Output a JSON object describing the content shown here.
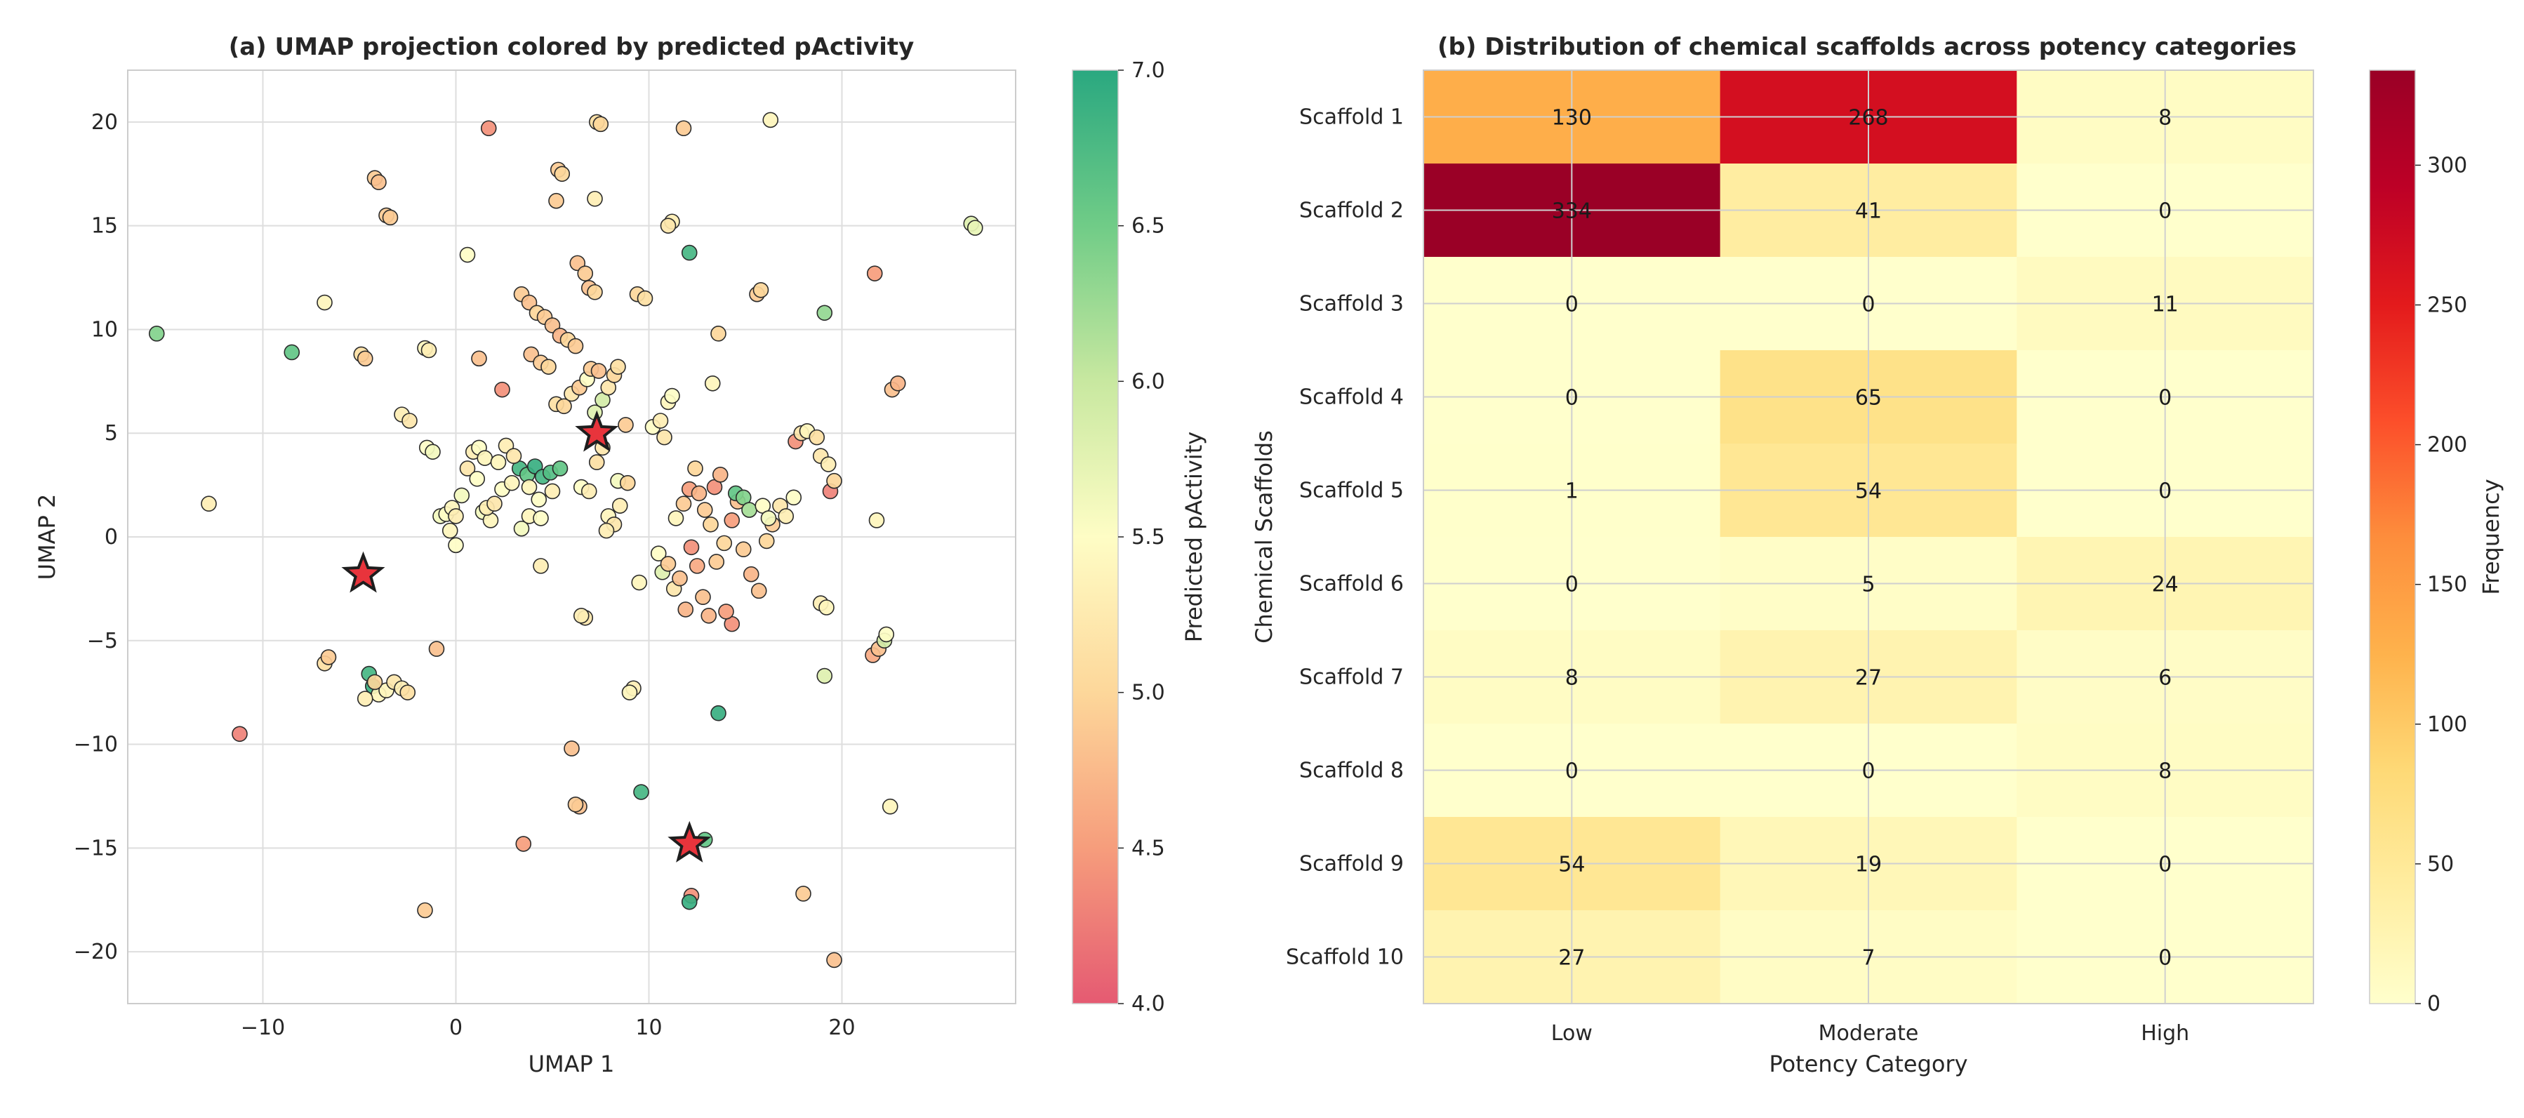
{
  "chart_data": [
    {
      "type": "scatter",
      "title": "(a) UMAP projection colored by predicted pActivity",
      "xlabel": "UMAP 1",
      "ylabel": "UMAP 2",
      "xlim": [
        -17,
        29
      ],
      "ylim": [
        -22.5,
        22.5
      ],
      "xticks": [
        -10,
        0,
        10,
        20
      ],
      "yticks": [
        -20,
        -15,
        -10,
        -5,
        0,
        5,
        10,
        15,
        20
      ],
      "grid": true,
      "colorbar": {
        "label": "Predicted pActivity",
        "range": [
          4.0,
          7.0
        ],
        "ticks": [
          4.0,
          4.5,
          5.0,
          5.5,
          6.0,
          6.5,
          7.0
        ],
        "tick_labels": [
          "4.0",
          "4.5",
          "5.0",
          "5.5",
          "6.0",
          "6.5",
          "7.0"
        ],
        "colors": [
          "#e55a72",
          "#f69d7c",
          "#fdd79a",
          "#fefdc5",
          "#c8e8a0",
          "#70cc87",
          "#2aa880"
        ]
      },
      "points": [
        [
          -15.5,
          9.8,
          6.4
        ],
        [
          -12.8,
          1.6,
          5.3
        ],
        [
          -11.2,
          -9.5,
          4.3
        ],
        [
          -8.5,
          8.9,
          6.6
        ],
        [
          -6.8,
          11.3,
          5.4
        ],
        [
          -6.8,
          -6.1,
          5.1
        ],
        [
          -6.6,
          -5.8,
          4.9
        ],
        [
          -4.9,
          8.8,
          5.1
        ],
        [
          -4.7,
          8.6,
          4.9
        ],
        [
          -4.2,
          17.3,
          4.9
        ],
        [
          -4.0,
          17.1,
          4.8
        ],
        [
          -3.6,
          15.5,
          4.9
        ],
        [
          -3.4,
          15.4,
          4.9
        ],
        [
          -2.8,
          5.9,
          5.3
        ],
        [
          -2.4,
          5.6,
          5.2
        ],
        [
          -1.6,
          9.1,
          5.4
        ],
        [
          -1.4,
          9.0,
          5.3
        ],
        [
          -1.5,
          4.3,
          5.5
        ],
        [
          -1.2,
          4.1,
          5.6
        ],
        [
          -1.0,
          -5.4,
          4.8
        ],
        [
          -1.6,
          -18.0,
          4.9
        ],
        [
          -4.5,
          -6.6,
          6.8
        ],
        [
          -4.3,
          -7.2,
          6.9
        ],
        [
          -4.0,
          -7.6,
          5.4
        ],
        [
          -3.6,
          -7.4,
          5.4
        ],
        [
          -3.2,
          -7.0,
          5.2
        ],
        [
          -2.8,
          -7.3,
          5.3
        ],
        [
          -2.5,
          -7.5,
          5.1
        ],
        [
          -4.7,
          -7.8,
          5.3
        ],
        [
          -4.2,
          -7.0,
          5.0
        ],
        [
          -0.8,
          1.0,
          5.6
        ],
        [
          -0.5,
          1.1,
          5.5
        ],
        [
          -0.2,
          1.4,
          5.4
        ],
        [
          0.0,
          1.0,
          5.3
        ],
        [
          -0.3,
          0.3,
          5.4
        ],
        [
          0.0,
          -0.4,
          5.5
        ],
        [
          0.3,
          2.0,
          5.6
        ],
        [
          0.6,
          3.3,
          5.2
        ],
        [
          0.9,
          4.1,
          5.3
        ],
        [
          1.2,
          4.3,
          5.5
        ],
        [
          1.5,
          3.8,
          5.4
        ],
        [
          1.1,
          2.8,
          5.5
        ],
        [
          1.4,
          1.2,
          5.6
        ],
        [
          1.8,
          0.8,
          5.4
        ],
        [
          1.6,
          1.4,
          5.3
        ],
        [
          0.6,
          13.6,
          5.5
        ],
        [
          1.2,
          8.6,
          4.8
        ],
        [
          1.7,
          19.7,
          4.4
        ],
        [
          2.4,
          7.1,
          4.4
        ],
        [
          2.0,
          1.6,
          5.2
        ],
        [
          2.4,
          2.3,
          5.5
        ],
        [
          2.9,
          2.6,
          5.4
        ],
        [
          3.3,
          3.3,
          6.8
        ],
        [
          3.7,
          3.0,
          6.6
        ],
        [
          4.1,
          3.4,
          6.9
        ],
        [
          4.5,
          2.9,
          6.8
        ],
        [
          4.9,
          3.1,
          6.7
        ],
        [
          5.4,
          3.3,
          6.6
        ],
        [
          3.8,
          2.4,
          5.4
        ],
        [
          4.3,
          1.8,
          5.5
        ],
        [
          5.0,
          2.2,
          5.3
        ],
        [
          2.6,
          4.4,
          5.3
        ],
        [
          3.0,
          3.9,
          5.2
        ],
        [
          2.2,
          3.6,
          5.4
        ],
        [
          3.4,
          0.4,
          5.6
        ],
        [
          3.8,
          1.0,
          5.4
        ],
        [
          4.4,
          0.9,
          5.5
        ],
        [
          4.4,
          -1.4,
          5.3
        ],
        [
          3.5,
          -14.8,
          4.5
        ],
        [
          3.4,
          11.7,
          4.9
        ],
        [
          3.8,
          11.3,
          4.8
        ],
        [
          4.2,
          10.8,
          5.0
        ],
        [
          4.6,
          10.6,
          4.9
        ],
        [
          5.0,
          10.2,
          4.8
        ],
        [
          5.4,
          9.7,
          4.7
        ],
        [
          5.8,
          9.5,
          5.0
        ],
        [
          6.2,
          9.2,
          4.9
        ],
        [
          3.9,
          8.8,
          4.8
        ],
        [
          4.4,
          8.4,
          4.9
        ],
        [
          4.8,
          8.2,
          5.0
        ],
        [
          5.2,
          16.2,
          4.9
        ],
        [
          5.3,
          17.7,
          4.9
        ],
        [
          5.5,
          17.5,
          5.0
        ],
        [
          6.3,
          13.2,
          4.8
        ],
        [
          6.7,
          12.7,
          4.9
        ],
        [
          6.9,
          12.0,
          4.8
        ],
        [
          7.2,
          11.8,
          5.0
        ],
        [
          7.3,
          20.0,
          5.1
        ],
        [
          7.5,
          19.9,
          5.0
        ],
        [
          7.2,
          16.3,
          5.3
        ],
        [
          5.2,
          6.4,
          5.1
        ],
        [
          5.6,
          6.3,
          5.0
        ],
        [
          6.0,
          6.9,
          5.2
        ],
        [
          6.4,
          7.2,
          4.9
        ],
        [
          6.8,
          7.6,
          5.5
        ],
        [
          7.2,
          6.0,
          5.8
        ],
        [
          7.6,
          6.6,
          5.9
        ],
        [
          7.9,
          7.2,
          5.2
        ],
        [
          8.2,
          7.8,
          5.0
        ],
        [
          8.4,
          8.2,
          5.1
        ],
        [
          7.0,
          8.1,
          4.9
        ],
        [
          7.4,
          8.0,
          4.8
        ],
        [
          6.5,
          2.4,
          5.5
        ],
        [
          6.9,
          2.2,
          5.3
        ],
        [
          7.3,
          3.6,
          5.1
        ],
        [
          7.6,
          4.3,
          5.2
        ],
        [
          7.9,
          1.0,
          5.4
        ],
        [
          8.2,
          0.6,
          5.2
        ],
        [
          7.8,
          0.3,
          5.3
        ],
        [
          6.7,
          -3.9,
          5.2
        ],
        [
          6.5,
          -3.8,
          5.3
        ],
        [
          6.0,
          -10.2,
          4.8
        ],
        [
          6.4,
          -13.0,
          4.8
        ],
        [
          6.2,
          -12.9,
          4.9
        ],
        [
          8.5,
          1.5,
          5.3
        ],
        [
          8.4,
          2.7,
          5.6
        ],
        [
          8.8,
          5.4,
          4.9
        ],
        [
          8.9,
          2.6,
          5.0
        ],
        [
          9.5,
          -2.2,
          5.4
        ],
        [
          9.2,
          -7.3,
          5.3
        ],
        [
          9.0,
          -7.5,
          5.4
        ],
        [
          9.6,
          -12.3,
          6.8
        ],
        [
          9.4,
          11.7,
          5.0
        ],
        [
          9.8,
          11.5,
          5.1
        ],
        [
          10.2,
          5.3,
          5.5
        ],
        [
          10.6,
          5.6,
          5.3
        ],
        [
          10.8,
          4.8,
          5.2
        ],
        [
          11.0,
          6.5,
          5.4
        ],
        [
          11.2,
          6.8,
          5.5
        ],
        [
          11.2,
          15.2,
          5.3
        ],
        [
          11.0,
          15.0,
          5.2
        ],
        [
          11.8,
          19.7,
          4.9
        ],
        [
          11.4,
          0.9,
          5.4
        ],
        [
          11.8,
          1.6,
          4.9
        ],
        [
          12.1,
          2.3,
          4.5
        ],
        [
          12.4,
          3.3,
          5.0
        ],
        [
          12.6,
          2.1,
          4.7
        ],
        [
          12.9,
          1.3,
          4.9
        ],
        [
          13.2,
          0.6,
          5.0
        ],
        [
          10.5,
          -0.8,
          5.5
        ],
        [
          10.7,
          -1.7,
          5.8
        ],
        [
          11.0,
          -1.3,
          4.9
        ],
        [
          11.3,
          -2.5,
          5.2
        ],
        [
          11.6,
          -2.0,
          4.8
        ],
        [
          11.9,
          -3.5,
          4.7
        ],
        [
          12.2,
          -0.5,
          4.4
        ],
        [
          12.5,
          -1.4,
          4.6
        ],
        [
          12.8,
          -2.9,
          4.8
        ],
        [
          13.1,
          -3.8,
          4.7
        ],
        [
          13.5,
          -1.2,
          4.9
        ],
        [
          13.9,
          -0.3,
          5.0
        ],
        [
          14.3,
          0.8,
          4.5
        ],
        [
          14.6,
          1.7,
          4.8
        ],
        [
          14.9,
          -0.6,
          4.9
        ],
        [
          15.3,
          -1.8,
          4.7
        ],
        [
          15.7,
          -2.6,
          4.8
        ],
        [
          16.1,
          -0.2,
          5.0
        ],
        [
          16.4,
          0.6,
          4.9
        ],
        [
          16.8,
          1.5,
          5.2
        ],
        [
          17.1,
          1.0,
          5.3
        ],
        [
          14.3,
          -4.2,
          4.4
        ],
        [
          14.0,
          -3.6,
          4.5
        ],
        [
          13.4,
          2.4,
          4.4
        ],
        [
          13.7,
          3.0,
          4.7
        ],
        [
          12.1,
          13.7,
          6.8
        ],
        [
          12.2,
          -17.3,
          4.4
        ],
        [
          12.1,
          -17.6,
          6.9
        ],
        [
          12.9,
          -14.6,
          6.6
        ],
        [
          13.6,
          -8.5,
          6.9
        ],
        [
          13.3,
          7.4,
          5.4
        ],
        [
          13.6,
          9.8,
          5.0
        ],
        [
          15.6,
          11.7,
          4.9
        ],
        [
          15.8,
          11.9,
          5.0
        ],
        [
          16.3,
          20.1,
          5.4
        ],
        [
          14.5,
          2.1,
          6.6
        ],
        [
          14.9,
          1.9,
          6.4
        ],
        [
          15.2,
          1.3,
          6.2
        ],
        [
          15.9,
          1.5,
          5.5
        ],
        [
          16.2,
          0.9,
          5.6
        ],
        [
          17.5,
          1.9,
          5.5
        ],
        [
          17.6,
          4.6,
          4.4
        ],
        [
          17.9,
          5.0,
          5.2
        ],
        [
          18.2,
          5.1,
          5.4
        ],
        [
          18.7,
          4.8,
          5.1
        ],
        [
          18.9,
          3.9,
          5.2
        ],
        [
          19.3,
          3.5,
          5.3
        ],
        [
          19.4,
          2.2,
          4.3
        ],
        [
          19.6,
          2.7,
          5.0
        ],
        [
          18.0,
          -17.2,
          4.9
        ],
        [
          18.9,
          -3.2,
          5.3
        ],
        [
          19.2,
          -3.4,
          5.4
        ],
        [
          19.1,
          -6.7,
          5.8
        ],
        [
          19.1,
          10.8,
          6.3
        ],
        [
          19.6,
          -20.4,
          4.8
        ],
        [
          21.7,
          12.7,
          4.5
        ],
        [
          21.8,
          0.8,
          5.4
        ],
        [
          21.6,
          -5.7,
          4.6
        ],
        [
          21.9,
          -5.4,
          4.8
        ],
        [
          22.2,
          -5.0,
          5.9
        ],
        [
          22.3,
          -4.7,
          5.5
        ],
        [
          22.5,
          -13.0,
          5.4
        ],
        [
          22.6,
          7.1,
          4.8
        ],
        [
          22.9,
          7.4,
          4.7
        ],
        [
          26.7,
          15.1,
          5.8
        ],
        [
          26.9,
          14.9,
          5.7
        ]
      ],
      "stars": [
        [
          -4.8,
          -1.8
        ],
        [
          7.3,
          5.0
        ],
        [
          12.1,
          -14.8
        ]
      ]
    },
    {
      "type": "heatmap",
      "title": "(b) Distribution of chemical scaffolds across potency categories",
      "xlabel": "Potency Category",
      "ylabel": "Chemical Scaffolds",
      "columns": [
        "Low",
        "Moderate",
        "High"
      ],
      "rows": [
        "Scaffold 1",
        "Scaffold 2",
        "Scaffold 3",
        "Scaffold 4",
        "Scaffold 5",
        "Scaffold 6",
        "Scaffold 7",
        "Scaffold 8",
        "Scaffold 9",
        "Scaffold 10"
      ],
      "values": [
        [
          130,
          268,
          8
        ],
        [
          334,
          41,
          0
        ],
        [
          0,
          0,
          11
        ],
        [
          0,
          65,
          0
        ],
        [
          1,
          54,
          0
        ],
        [
          0,
          5,
          24
        ],
        [
          8,
          27,
          6
        ],
        [
          0,
          0,
          8
        ],
        [
          54,
          19,
          0
        ],
        [
          27,
          7,
          0
        ]
      ],
      "grid": true,
      "colorbar": {
        "label": "Frequency",
        "range": [
          0,
          334
        ],
        "ticks": [
          0,
          50,
          100,
          150,
          200,
          250,
          300
        ],
        "tick_labels": [
          "0",
          "50",
          "100",
          "150",
          "200",
          "250",
          "300"
        ],
        "colors": [
          "#ffffcc",
          "#ffeda0",
          "#fed976",
          "#feb24c",
          "#fd8d3c",
          "#fc4e2a",
          "#e31a1c",
          "#bd0026",
          "#9a0026"
        ]
      }
    }
  ]
}
